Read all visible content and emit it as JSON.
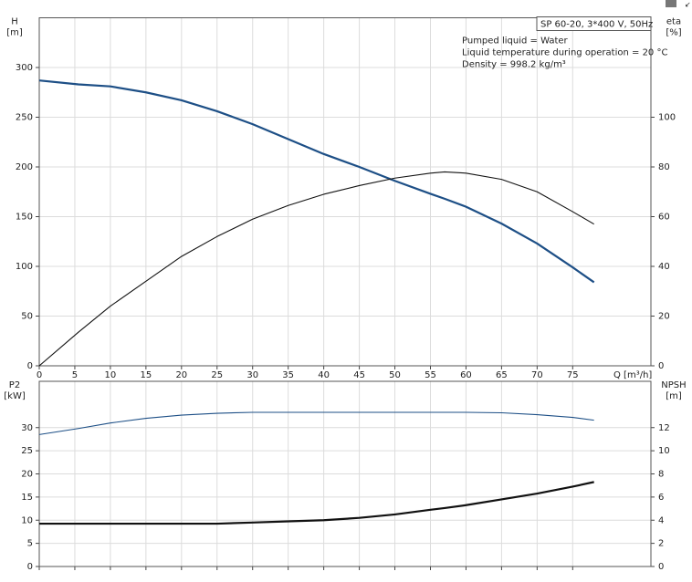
{
  "chart_data": [
    {
      "type": "line",
      "box_text": "SP 60-20, 3*400 V, 50Hz",
      "notes": [
        "Pumped liquid = Water",
        "Liquid temperature during operation = 20 °C",
        "Density = 998.2 kg/m³"
      ],
      "y_label": "H",
      "y_unit": "[m]",
      "y2_label": "eta",
      "y2_unit": "[%]",
      "x_label": "Q [m³/h]",
      "x": [
        0,
        5.5,
        10,
        15,
        20,
        25,
        30,
        35,
        40,
        45,
        50,
        55,
        57,
        60,
        65,
        70,
        75,
        78
      ],
      "xlim": [
        0,
        86
      ],
      "xticks": [
        0,
        5,
        10,
        15,
        20,
        25,
        30,
        35,
        40,
        45,
        50,
        55,
        60,
        65,
        70,
        75
      ],
      "show_xtick_labels": true,
      "ylim": [
        0,
        350
      ],
      "yticks": [
        0,
        50,
        100,
        150,
        200,
        250,
        300
      ],
      "y2lim": [
        0,
        140
      ],
      "y2ticks": [
        0,
        20,
        40,
        60,
        80,
        100
      ],
      "grid": true,
      "series": [
        {
          "color": "#1d4f86",
          "axis": "y",
          "values": [
            287,
            283,
            281,
            275,
            267,
            256,
            243,
            228,
            213,
            200,
            186,
            173,
            168,
            160,
            143,
            123,
            99,
            84
          ]
        },
        {
          "color": "#111111",
          "axis": "y2",
          "values": [
            0,
            13.5,
            24,
            34,
            44,
            52,
            59,
            64.5,
            69,
            72.5,
            75.5,
            77.5,
            78,
            77.5,
            75,
            70,
            62,
            57
          ]
        }
      ]
    },
    {
      "type": "line",
      "y_label": "P2",
      "y_unit": "[kW]",
      "y2_label": "NPSH",
      "y2_unit": "[m]",
      "x": [
        0,
        5.5,
        10,
        15,
        20,
        25,
        30,
        35,
        40,
        45,
        50,
        55,
        57,
        60,
        65,
        70,
        75,
        78
      ],
      "xlim": [
        0,
        86
      ],
      "xticks": [
        0,
        5,
        10,
        15,
        20,
        25,
        30,
        35,
        40,
        45,
        50,
        55,
        60,
        65,
        70,
        75
      ],
      "show_xtick_labels": false,
      "ylim": [
        0,
        40
      ],
      "yticks": [
        0,
        5,
        10,
        15,
        20,
        25,
        30
      ],
      "y2lim": [
        0,
        16
      ],
      "y2ticks": [
        0,
        2,
        4,
        6,
        8,
        10,
        12
      ],
      "grid": true,
      "series": [
        {
          "color": "#1d4f86",
          "axis": "y",
          "values": [
            28.5,
            29.8,
            31,
            32,
            32.7,
            33.1,
            33.3,
            33.3,
            33.3,
            33.3,
            33.3,
            33.3,
            33.3,
            33.3,
            33.2,
            32.8,
            32.2,
            31.6
          ]
        },
        {
          "color": "#111111",
          "axis": "y2",
          "values": [
            3.7,
            3.7,
            3.7,
            3.7,
            3.7,
            3.7,
            3.8,
            3.9,
            4.0,
            4.2,
            4.5,
            4.9,
            5.05,
            5.3,
            5.8,
            6.3,
            6.9,
            7.3
          ]
        }
      ]
    }
  ]
}
